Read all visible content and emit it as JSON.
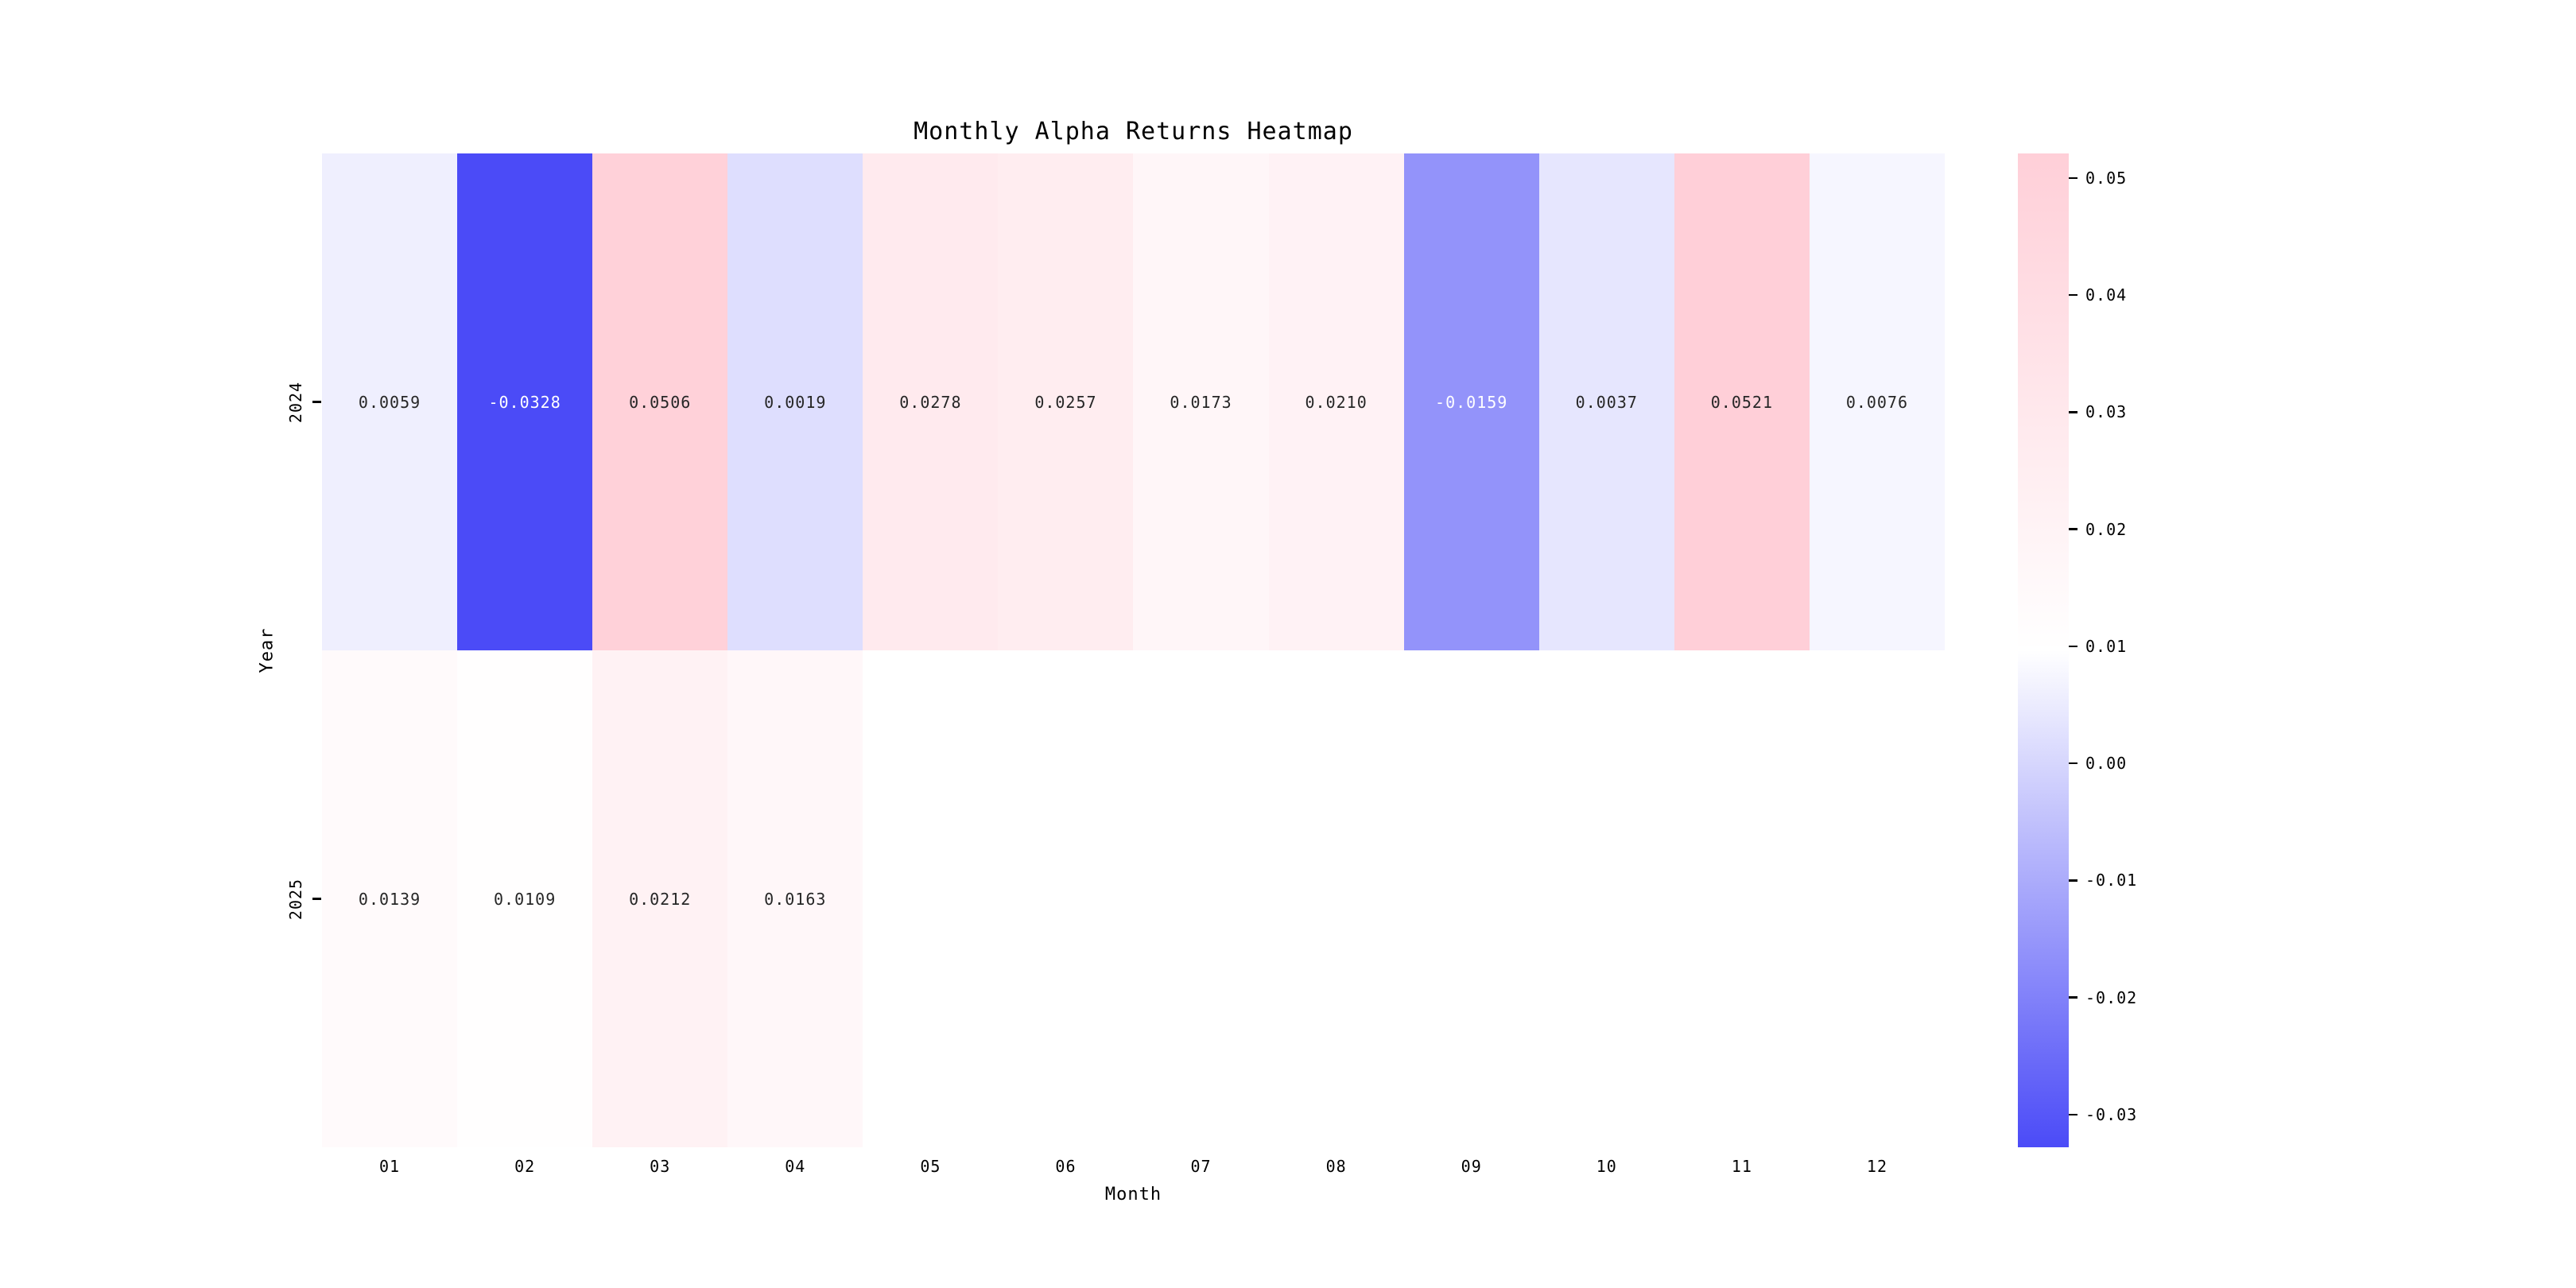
{
  "chart_data": {
    "type": "heatmap",
    "title": "Monthly Alpha Returns Heatmap",
    "xlabel": "Month",
    "ylabel": "Year",
    "columns": [
      "01",
      "02",
      "03",
      "04",
      "05",
      "06",
      "07",
      "08",
      "09",
      "10",
      "11",
      "12"
    ],
    "rows": [
      "2024",
      "2025"
    ],
    "series": [
      {
        "name": "2024",
        "values": [
          0.0059,
          -0.0328,
          0.0506,
          0.0019,
          0.0278,
          0.0257,
          0.0173,
          0.021,
          -0.0159,
          0.0037,
          0.0521,
          0.0076
        ],
        "labels": [
          "0.0059",
          "-0.0328",
          "0.0506",
          "0.0019",
          "0.0278",
          "0.0257",
          "0.0173",
          "0.0210",
          "-0.0159",
          "0.0037",
          "0.0521",
          "0.0076"
        ]
      },
      {
        "name": "2025",
        "values": [
          0.0139,
          0.0109,
          0.0212,
          0.0163,
          null,
          null,
          null,
          null,
          null,
          null,
          null,
          null
        ],
        "labels": [
          "0.0139",
          "0.0109",
          "0.0212",
          "0.0163",
          "",
          "",
          "",
          "",
          "",
          "",
          "",
          ""
        ]
      }
    ],
    "colorbar": {
      "vmin": -0.0328,
      "vmax": 0.0521,
      "tick_labels": [
        "0.05",
        "0.04",
        "0.03",
        "0.02",
        "0.01",
        "0.00",
        "-0.01",
        "-0.02",
        "-0.03"
      ],
      "tick_values": [
        0.05,
        0.04,
        0.03,
        0.02,
        0.01,
        0.0,
        -0.01,
        -0.02,
        -0.03
      ],
      "color_negative_end": "#4b4bf7",
      "color_center": "#ffffff",
      "color_positive_end": "#ffcfd8"
    },
    "colors": {
      "annotation_dark": "#262626",
      "annotation_light": "#ffffff",
      "empty_cell": "#ffffff",
      "axis_text": "#000000"
    },
    "layout": {
      "grid_on": false,
      "legend_position": "right-colorbar"
    }
  }
}
